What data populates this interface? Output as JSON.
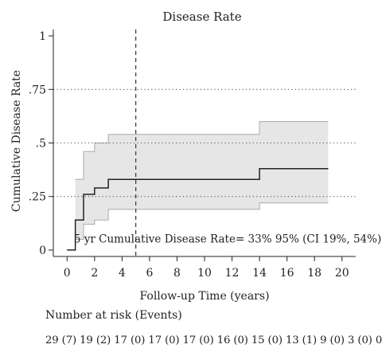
{
  "chart_data": {
    "type": "line",
    "title": "Disease Rate",
    "xlabel": "Follow-up Time (years)",
    "ylabel": "Cumulative Disease Rate",
    "xlim": [
      -1,
      21
    ],
    "ylim": [
      -0.03,
      1.03
    ],
    "x_ticks": [
      0,
      2,
      4,
      6,
      8,
      10,
      12,
      14,
      16,
      18,
      20
    ],
    "x_tick_labels": [
      "0",
      "2",
      "4",
      "6",
      "8",
      "10",
      "12",
      "14",
      "16",
      "18",
      "20"
    ],
    "y_ticks": [
      0,
      0.25,
      0.5,
      0.75,
      1
    ],
    "y_tick_labels": [
      "0",
      ".25",
      ".5",
      ".75",
      "1"
    ],
    "reference_gridlines_y": [
      0.25,
      0.5,
      0.75
    ],
    "grid": "dotted horizontal",
    "vertical_reference_x": 5,
    "series": [
      {
        "style": "step",
        "color": "#222222",
        "x": [
          0,
          0.6,
          1.2,
          2,
          3,
          14,
          19
        ],
        "y": [
          0,
          0.14,
          0.26,
          0.29,
          0.33,
          0.38,
          0.38
        ]
      }
    ],
    "ci_band": {
      "color": "#e6e6e6",
      "edge_color": "#aaaaaa",
      "x": [
        0.6,
        1.2,
        2,
        3,
        14,
        19
      ],
      "lower": [
        0.05,
        0.12,
        0.14,
        0.19,
        0.22,
        0.22
      ],
      "upper": [
        0.33,
        0.46,
        0.5,
        0.54,
        0.6,
        0.6
      ]
    },
    "annotation": {
      "text": "5 yr Cumulative Disease Rate= 33% 95% (CI 19%, 54%)",
      "x": 0.5,
      "y": 0.035
    }
  },
  "risk_table": {
    "title": "Number at risk (Events)",
    "row": "29 (7) 19 (2) 17 (0) 17 (0) 17 (0) 16 (0) 15 (0) 13 (1) 9 (0) 3 (0) 0"
  },
  "colors": {
    "line": "#222222",
    "band_fill": "#e6e6e6",
    "band_edge": "#aaaaaa",
    "axis": "#222222"
  }
}
